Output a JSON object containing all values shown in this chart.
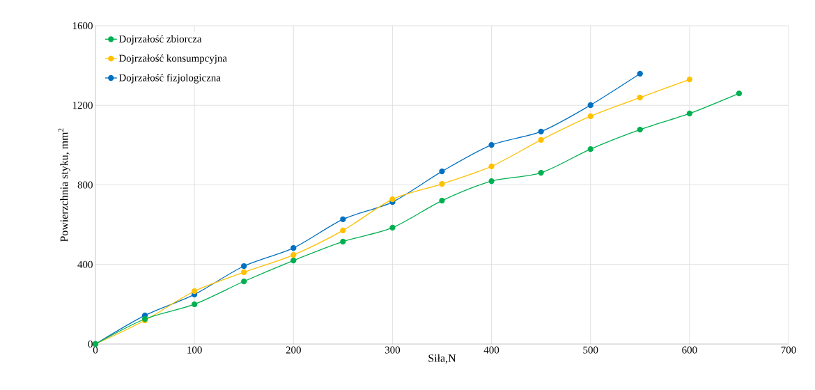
{
  "chart_data": {
    "type": "line",
    "xlabel": "Siła,N",
    "ylabel": "Powierzchnia styku, mm$^{2}$",
    "x": [
      0,
      50,
      100,
      150,
      200,
      250,
      300,
      350,
      400,
      450,
      500,
      550,
      600,
      650
    ],
    "series": [
      {
        "name": "Dojrzałość zbiorcza",
        "color": "#00b050",
        "values": [
          0,
          126,
          200,
          315,
          420,
          515,
          585,
          721,
          819,
          861,
          980,
          1078,
          1159,
          1260
        ]
      },
      {
        "name": "Dojrzałość konsumpcyjna",
        "color": "#ffc000",
        "values": [
          0,
          119,
          266,
          361,
          448,
          571,
          728,
          805,
          893,
          1026,
          1145,
          1239,
          1330,
          null
        ]
      },
      {
        "name": "Dojrzałość fizjologiczna",
        "color": "#0070c0",
        "values": [
          0,
          144,
          249,
          392,
          483,
          627,
          714,
          868,
          1001,
          1068,
          1201,
          1359,
          null,
          null
        ]
      }
    ],
    "xlim": [
      0,
      700
    ],
    "ylim": [
      0,
      1600
    ],
    "xticks": [
      0,
      100,
      200,
      300,
      400,
      500,
      600,
      700
    ],
    "yticks": [
      0,
      400,
      800,
      1200,
      1600
    ],
    "grid": true,
    "legend": "top left",
    "marker": "circle",
    "line_style": "solid"
  }
}
